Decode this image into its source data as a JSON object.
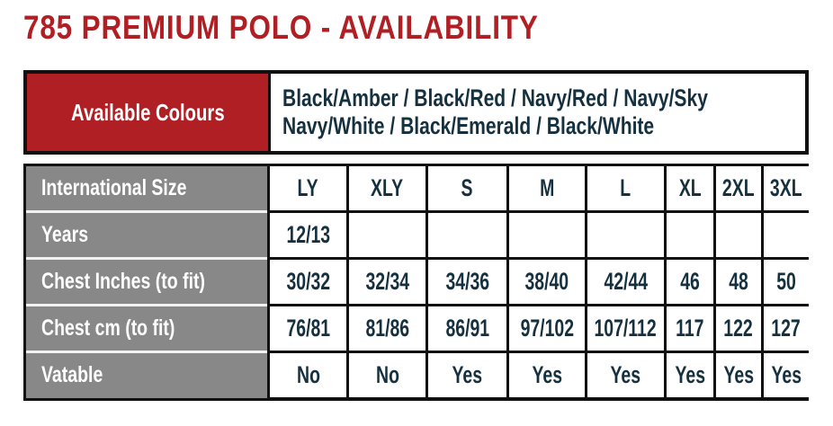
{
  "title": "785 PREMIUM POLO - AVAILABILITY",
  "colors": {
    "accent_red": "#b01f24",
    "header_gray": "#888888",
    "text_navy": "#15303f",
    "border_black": "#111111"
  },
  "colours_table": {
    "label": "Available Colours",
    "lines": [
      "Black/Amber / Black/Red / Navy/Red / Navy/Sky",
      "Navy/White / Black/Emerald / Black/White"
    ]
  },
  "size_table": {
    "rows": [
      {
        "label": "International Size",
        "values": [
          "LY",
          "XLY",
          "S",
          "M",
          "L",
          "XL",
          "2XL",
          "3XL"
        ]
      },
      {
        "label": "Years",
        "values": [
          "12/13",
          "",
          "",
          "",
          "",
          "",
          "",
          ""
        ]
      },
      {
        "label": "Chest Inches (to fit)",
        "values": [
          "30/32",
          "32/34",
          "34/36",
          "38/40",
          "42/44",
          "46",
          "48",
          "50"
        ]
      },
      {
        "label": "Chest cm (to fit)",
        "values": [
          "76/81",
          "81/86",
          "86/91",
          "97/102",
          "107/112",
          "117",
          "122",
          "127"
        ]
      },
      {
        "label": "Vatable",
        "values": [
          "No",
          "No",
          "Yes",
          "Yes",
          "Yes",
          "Yes",
          "Yes",
          "Yes"
        ]
      }
    ]
  }
}
